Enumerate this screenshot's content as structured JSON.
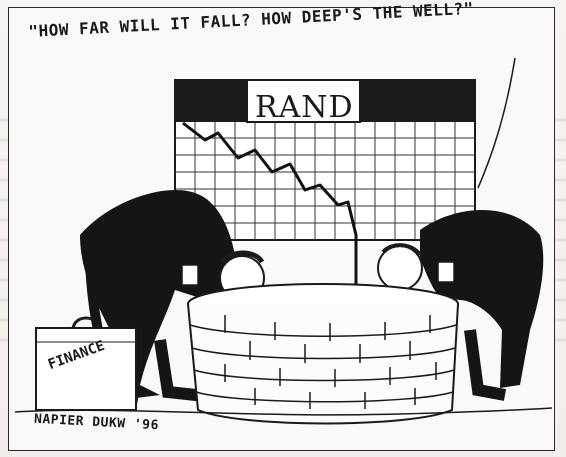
{
  "caption": "\"HOW FAR WILL IT FALL? HOW DEEP'S THE WELL?\"",
  "chart_title": "RAND",
  "briefcase_label": "FINANCE",
  "signature": "NAPIER DUKW '96"
}
